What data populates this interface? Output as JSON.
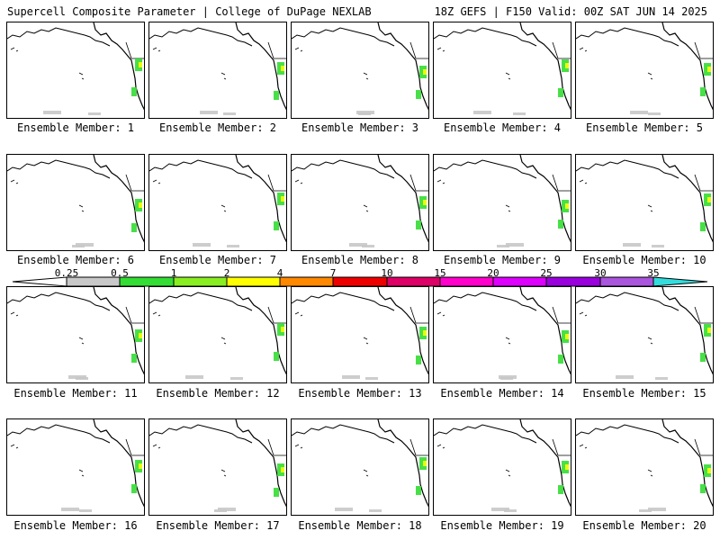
{
  "header": {
    "title": "Supercell Composite Parameter | College of DuPage NEXLAB",
    "valid": "18Z GEFS | F150 Valid: 00Z SAT JUN 14 2025"
  },
  "members": [
    {
      "label": "Ensemble Member: 1"
    },
    {
      "label": "Ensemble Member: 2"
    },
    {
      "label": "Ensemble Member: 3"
    },
    {
      "label": "Ensemble Member: 4"
    },
    {
      "label": "Ensemble Member: 5"
    },
    {
      "label": "Ensemble Member: 6"
    },
    {
      "label": "Ensemble Member: 7"
    },
    {
      "label": "Ensemble Member: 8"
    },
    {
      "label": "Ensemble Member: 9"
    },
    {
      "label": "Ensemble Member: 10"
    },
    {
      "label": "Ensemble Member: 11"
    },
    {
      "label": "Ensemble Member: 12"
    },
    {
      "label": "Ensemble Member: 13"
    },
    {
      "label": "Ensemble Member: 14"
    },
    {
      "label": "Ensemble Member: 15"
    },
    {
      "label": "Ensemble Member: 16"
    },
    {
      "label": "Ensemble Member: 17"
    },
    {
      "label": "Ensemble Member: 18"
    },
    {
      "label": "Ensemble Member: 19"
    },
    {
      "label": "Ensemble Member: 20"
    }
  ],
  "colorbar": {
    "ticks": [
      "0.25",
      "0.5",
      "1",
      "2",
      "4",
      "7",
      "10",
      "15",
      "20",
      "25",
      "30",
      "35"
    ],
    "colors": [
      "#c8c8c8",
      "#33dd33",
      "#88ee22",
      "#ffff00",
      "#ff8800",
      "#ee0000",
      "#dd0066",
      "#ff00cc",
      "#dd00ff",
      "#9900dd",
      "#aa55dd",
      "#33dddd"
    ]
  }
}
